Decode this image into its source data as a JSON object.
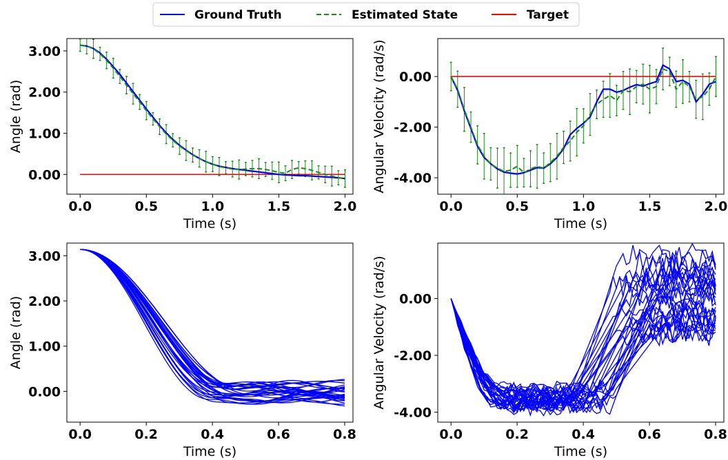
{
  "legend": {
    "entries": [
      {
        "label": "Ground Truth",
        "color": "#0000ff",
        "style": "solid"
      },
      {
        "label": "Estimated State",
        "color": "#1a8a1a",
        "style": "dashed"
      },
      {
        "label": "Target",
        "color": "#ff0000",
        "style": "solid"
      }
    ],
    "placement": "top-center"
  },
  "chart_data": [
    {
      "type": "line",
      "xlabel": "Time (s)",
      "ylabel": "Angle (rad)",
      "xlim": [
        -0.1,
        2.06
      ],
      "ylim": [
        -0.48,
        3.3
      ],
      "xticks": [
        0.0,
        0.5,
        1.0,
        1.5,
        2.0
      ],
      "xtick_labels": [
        "0.0",
        "0.5",
        "1.0",
        "1.5",
        "2.0"
      ],
      "yticks": [
        0.0,
        1.0,
        2.0,
        3.0
      ],
      "ytick_labels": [
        "0.00",
        "1.00",
        "2.00",
        "3.00"
      ],
      "x": [
        0.0,
        0.05,
        0.1,
        0.15,
        0.2,
        0.25,
        0.3,
        0.35,
        0.4,
        0.45,
        0.5,
        0.55,
        0.6,
        0.65,
        0.7,
        0.75,
        0.8,
        0.85,
        0.9,
        0.95,
        1.0,
        1.05,
        1.1,
        1.15,
        1.2,
        1.25,
        1.3,
        1.35,
        1.4,
        1.45,
        1.5,
        1.55,
        1.6,
        1.65,
        1.7,
        1.75,
        1.8,
        1.85,
        1.9,
        1.95,
        2.0
      ],
      "series": [
        {
          "name": "Ground Truth",
          "color": "#0000ff",
          "style": "solid",
          "values": [
            3.14,
            3.12,
            3.06,
            2.95,
            2.8,
            2.62,
            2.43,
            2.22,
            2.01,
            1.8,
            1.59,
            1.39,
            1.19,
            1.01,
            0.85,
            0.71,
            0.59,
            0.48,
            0.39,
            0.31,
            0.25,
            0.2,
            0.17,
            0.14,
            0.12,
            0.1,
            0.08,
            0.06,
            0.04,
            0.02,
            0.0,
            -0.01,
            -0.02,
            -0.03,
            -0.03,
            -0.04,
            -0.05,
            -0.06,
            -0.07,
            -0.08,
            -0.1
          ]
        },
        {
          "name": "Estimated State",
          "color": "#1a8a1a",
          "style": "dashed",
          "error": 0.2,
          "values": [
            3.14,
            3.12,
            3.05,
            2.93,
            2.77,
            2.58,
            2.38,
            2.17,
            1.96,
            1.76,
            1.55,
            1.35,
            1.16,
            0.98,
            0.83,
            0.69,
            0.58,
            0.47,
            0.39,
            0.31,
            0.25,
            0.19,
            0.16,
            0.13,
            0.12,
            0.13,
            0.14,
            0.14,
            0.12,
            0.09,
            0.05,
            0.03,
            0.12,
            0.16,
            0.14,
            0.1,
            0.05,
            0.0,
            -0.04,
            -0.08,
            -0.1
          ]
        },
        {
          "name": "Target",
          "color": "#ff0000",
          "style": "solid",
          "values": [
            0,
            0,
            0,
            0,
            0,
            0,
            0,
            0,
            0,
            0,
            0,
            0,
            0,
            0,
            0,
            0,
            0,
            0,
            0,
            0,
            0,
            0,
            0,
            0,
            0,
            0,
            0,
            0,
            0,
            0,
            0,
            0,
            0,
            0,
            0,
            0,
            0,
            0,
            0,
            0,
            0
          ]
        }
      ]
    },
    {
      "type": "line",
      "xlabel": "Time (s)",
      "ylabel": "Angular Velocity (rad/s)",
      "xlim": [
        -0.1,
        2.06
      ],
      "ylim": [
        -4.65,
        1.5
      ],
      "xticks": [
        0.0,
        0.5,
        1.0,
        1.5,
        2.0
      ],
      "xtick_labels": [
        "0.0",
        "0.5",
        "1.0",
        "1.5",
        "2.0"
      ],
      "yticks": [
        -4.0,
        -2.0,
        0.0
      ],
      "ytick_labels": [
        "-4.00",
        "-2.00",
        "0.00"
      ],
      "x": [
        0.0,
        0.05,
        0.1,
        0.15,
        0.2,
        0.25,
        0.3,
        0.35,
        0.4,
        0.45,
        0.5,
        0.55,
        0.6,
        0.65,
        0.7,
        0.75,
        0.8,
        0.85,
        0.9,
        0.95,
        1.0,
        1.05,
        1.1,
        1.15,
        1.2,
        1.25,
        1.3,
        1.35,
        1.4,
        1.45,
        1.5,
        1.55,
        1.6,
        1.65,
        1.7,
        1.75,
        1.8,
        1.85,
        1.9,
        1.95,
        2.0
      ],
      "series": [
        {
          "name": "Ground Truth",
          "color": "#0000ff",
          "style": "solid",
          "values": [
            0.0,
            -0.55,
            -1.35,
            -2.05,
            -2.75,
            -3.2,
            -3.45,
            -3.65,
            -3.78,
            -3.82,
            -3.85,
            -3.8,
            -3.7,
            -3.6,
            -3.62,
            -3.45,
            -3.2,
            -2.85,
            -2.3,
            -2.05,
            -1.85,
            -1.6,
            -1.0,
            -0.5,
            -0.5,
            -0.62,
            -0.55,
            -0.42,
            -0.32,
            -0.38,
            -0.28,
            -0.2,
            0.45,
            0.3,
            -0.2,
            -0.15,
            -0.3,
            -1.0,
            -0.7,
            -0.3,
            -0.2
          ]
        },
        {
          "name": "Estimated State",
          "color": "#1a8a1a",
          "style": "dashed",
          "error": 0.75,
          "values": [
            0.0,
            -0.5,
            -1.3,
            -2.0,
            -2.7,
            -3.15,
            -3.45,
            -3.62,
            -3.75,
            -3.7,
            -3.55,
            -3.8,
            -3.65,
            -3.55,
            -3.62,
            -3.4,
            -3.15,
            -2.8,
            -2.55,
            -2.2,
            -1.95,
            -1.5,
            -1.1,
            -0.9,
            -0.75,
            -0.95,
            -0.55,
            -0.6,
            -0.4,
            -0.3,
            -0.5,
            -0.4,
            0.3,
            0.2,
            -0.5,
            -0.2,
            -0.4,
            -0.9,
            -0.8,
            -0.5,
            0.0
          ]
        },
        {
          "name": "Target",
          "color": "#ff0000",
          "style": "solid",
          "values": [
            0,
            0,
            0,
            0,
            0,
            0,
            0,
            0,
            0,
            0,
            0,
            0,
            0,
            0,
            0,
            0,
            0,
            0,
            0,
            0,
            0,
            0,
            0,
            0,
            0,
            0,
            0,
            0,
            0,
            0,
            0,
            0,
            0,
            0,
            0,
            0,
            0,
            0,
            0,
            0,
            0
          ]
        }
      ]
    },
    {
      "type": "line",
      "xlabel": "Time (s)",
      "ylabel": "Angle (rad)",
      "xlim": [
        -0.04,
        0.825
      ],
      "ylim": [
        -0.68,
        3.28
      ],
      "xticks": [
        0.0,
        0.2,
        0.4,
        0.6,
        0.8
      ],
      "xtick_labels": [
        "0.0",
        "0.2",
        "0.4",
        "0.6",
        "0.8"
      ],
      "yticks": [
        0.0,
        1.0,
        2.0,
        3.0
      ],
      "ytick_labels": [
        "0.00",
        "1.00",
        "2.00",
        "3.00"
      ],
      "ensemble": {
        "color": "#0000ff",
        "count": 30,
        "t_end": 0.8,
        "start": 3.14,
        "settle_time_range": [
          0.38,
          0.52
        ],
        "final_range": [
          -0.3,
          0.2
        ]
      }
    },
    {
      "type": "line",
      "xlabel": "Time (s)",
      "ylabel": "Angular Velocity (rad/s)",
      "xlim": [
        -0.04,
        0.825
      ],
      "ylim": [
        -4.35,
        1.95
      ],
      "xticks": [
        0.0,
        0.2,
        0.4,
        0.6,
        0.8
      ],
      "xtick_labels": [
        "0.0",
        "0.2",
        "0.4",
        "0.6",
        "0.8"
      ],
      "yticks": [
        -4.0,
        -2.0,
        0.0
      ],
      "ytick_labels": [
        "-4.00",
        "-2.00",
        "0.00"
      ],
      "ensemble": {
        "color": "#0000ff",
        "count": 30,
        "t_end": 0.8,
        "start": 0.0,
        "min_range": [
          -3.9,
          -3.1
        ],
        "rise_time_range": [
          0.33,
          0.5
        ],
        "final_range": [
          -1.3,
          1.6
        ]
      }
    }
  ]
}
